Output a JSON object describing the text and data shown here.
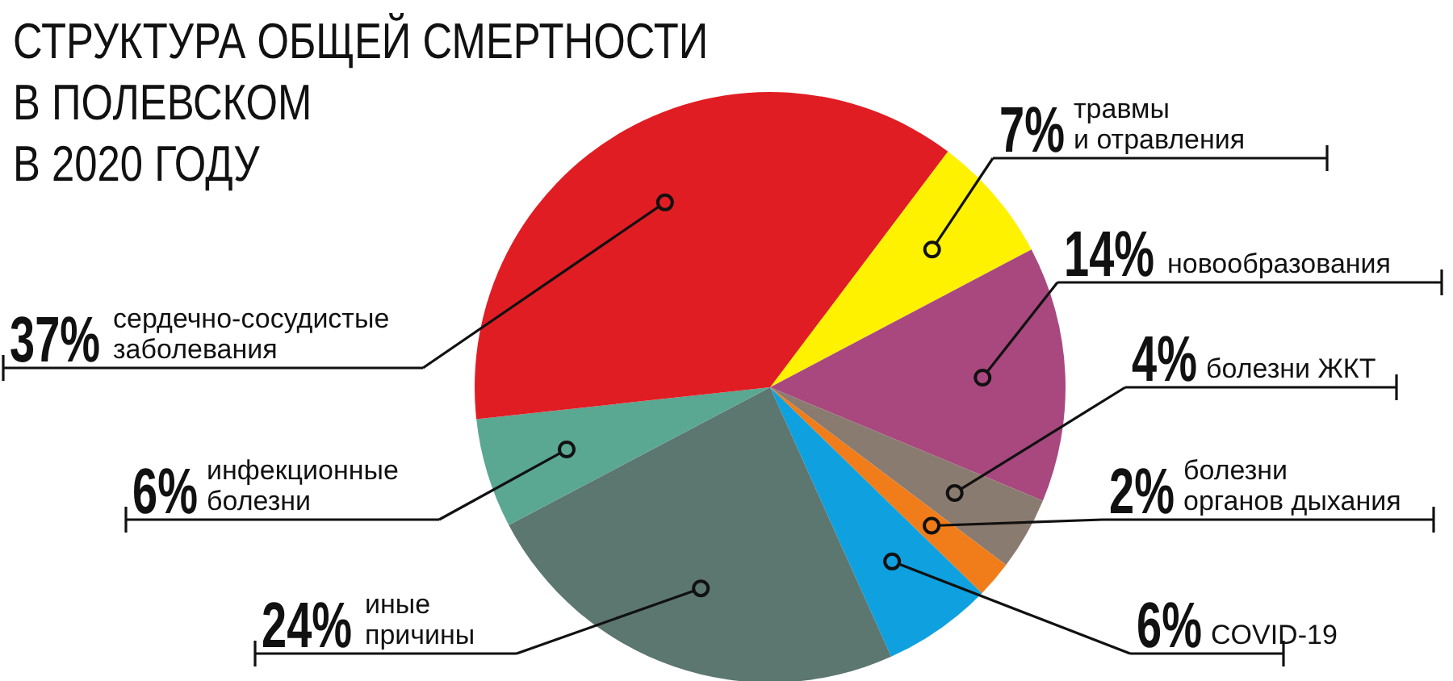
{
  "chart_data": {
    "type": "pie",
    "title": "СТРУКТУРА ОБЩЕЙ СМЕРТНОСТИ\nВ ПОЛЕВСКОМ\nВ 2020 ГОДУ",
    "categories": [
      "травмы\nи отравления",
      "новообразования",
      "болезни ЖКТ",
      "болезни\nорганов дыхания",
      "COVID-19",
      "иные\nпричины",
      "инфекционные\nболезни",
      "сердечно-сосудистые\nзаболевания"
    ],
    "values": [
      7,
      14,
      4,
      2,
      6,
      24,
      6,
      37
    ],
    "value_labels": [
      "7%",
      "14%",
      "4%",
      "2%",
      "6%",
      "24%",
      "6%",
      "37%"
    ],
    "colors": [
      "#fff200",
      "#a8487f",
      "#8a7b70",
      "#f07d1a",
      "#0fa0df",
      "#5c7670",
      "#5aa792",
      "#e11d24"
    ]
  }
}
